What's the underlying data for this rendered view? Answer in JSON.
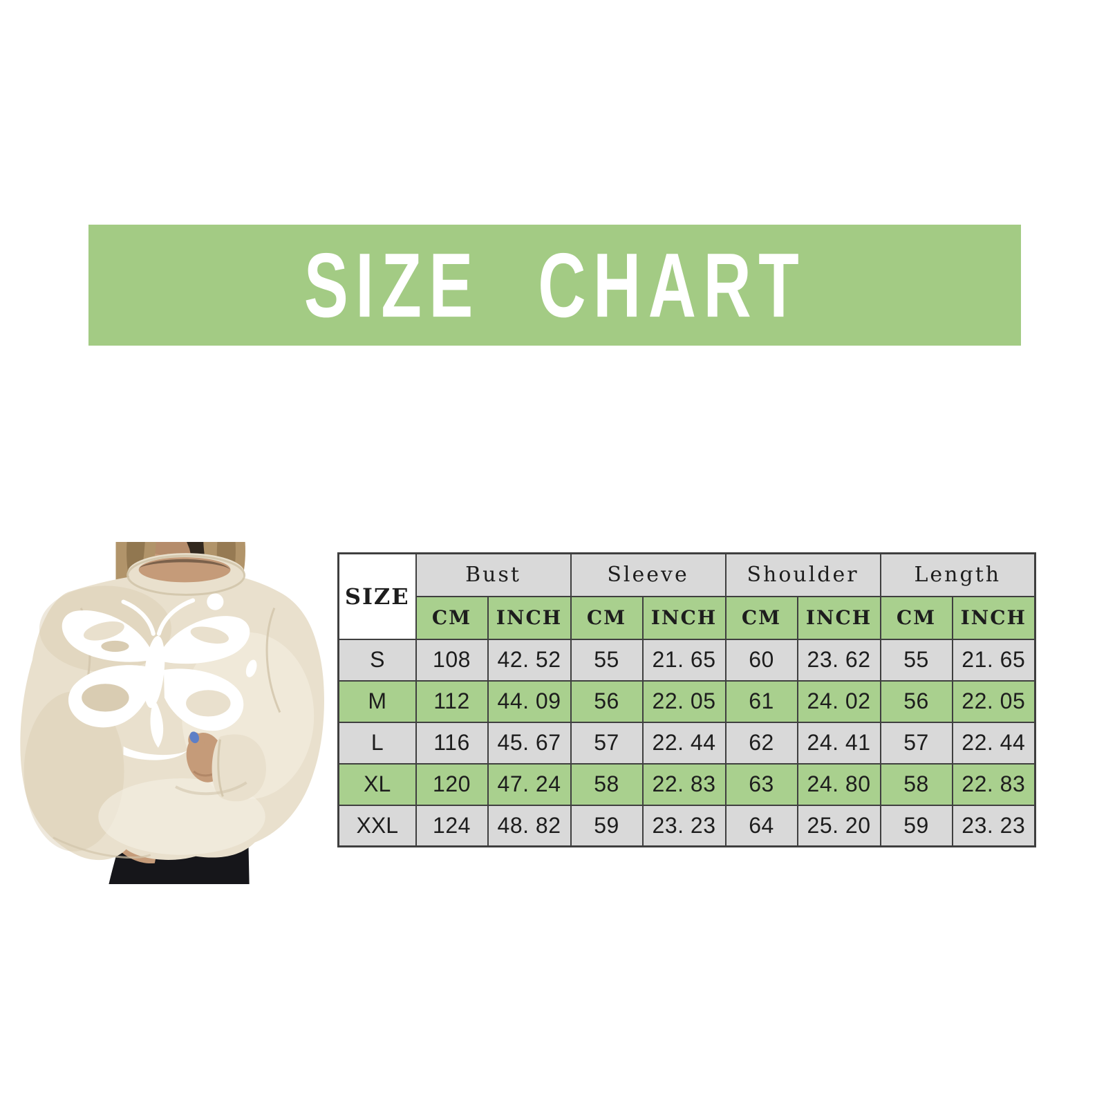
{
  "banner": {
    "title": "SIZE CHART",
    "bg_color": "#a3cb84",
    "text_color": "#ffffff"
  },
  "photo": {
    "description": "Model wearing cream oversized crewneck sweatshirt with white tie-dye butterfly print, hands tucked in hem, black pants",
    "colors": {
      "sweatshirt": "#e9e0cd",
      "sweatshirt_shade": "#d9ccb2",
      "sweatshirt_light": "#f5f0e4",
      "hair_light": "#b1946a",
      "hair_mid": "#8a6f4a",
      "hair_dark": "#32281e",
      "skin": "#c59b79",
      "skin_shadow": "#a87f60",
      "pants": "#16161a",
      "print": "#ffffff",
      "nail": "#5d7fc7"
    }
  },
  "size_table": {
    "corner_label": "SIZE",
    "groups": [
      "Bust",
      "Sleeve",
      "Shoulder",
      "Length"
    ],
    "units": {
      "cm": "CM",
      "inch": "INCH"
    },
    "colors": {
      "header_bg": "#d9d9d9",
      "accent_bg": "#a9d08e",
      "border": "#3f3f3f"
    },
    "rows": [
      {
        "size": "S",
        "highlighted": false,
        "values": [
          "108",
          "42. 52",
          "55",
          "21. 65",
          "60",
          "23. 62",
          "55",
          "21. 65"
        ]
      },
      {
        "size": "M",
        "highlighted": true,
        "values": [
          "112",
          "44. 09",
          "56",
          "22. 05",
          "61",
          "24. 02",
          "56",
          "22. 05"
        ]
      },
      {
        "size": "L",
        "highlighted": false,
        "values": [
          "116",
          "45. 67",
          "57",
          "22. 44",
          "62",
          "24. 41",
          "57",
          "22. 44"
        ]
      },
      {
        "size": "XL",
        "highlighted": true,
        "values": [
          "120",
          "47. 24",
          "58",
          "22. 83",
          "63",
          "24. 80",
          "58",
          "22. 83"
        ]
      },
      {
        "size": "XXL",
        "highlighted": false,
        "values": [
          "124",
          "48. 82",
          "59",
          "23. 23",
          "64",
          "25. 20",
          "59",
          "23. 23"
        ]
      }
    ]
  },
  "chart_data": {
    "type": "table",
    "title": "SIZE CHART",
    "columns": [
      "SIZE",
      "Bust CM",
      "Bust INCH",
      "Sleeve CM",
      "Sleeve INCH",
      "Shoulder CM",
      "Shoulder INCH",
      "Length CM",
      "Length INCH"
    ],
    "rows": [
      [
        "S",
        108,
        42.52,
        55,
        21.65,
        60,
        23.62,
        55,
        21.65
      ],
      [
        "M",
        112,
        44.09,
        56,
        22.05,
        61,
        24.02,
        56,
        22.05
      ],
      [
        "L",
        116,
        45.67,
        57,
        22.44,
        62,
        24.41,
        57,
        22.44
      ],
      [
        "XL",
        120,
        47.24,
        58,
        22.83,
        63,
        24.8,
        58,
        22.83
      ],
      [
        "XXL",
        124,
        48.82,
        59,
        23.23,
        64,
        25.2,
        59,
        23.23
      ]
    ],
    "legend_position": "none",
    "grid": true
  }
}
